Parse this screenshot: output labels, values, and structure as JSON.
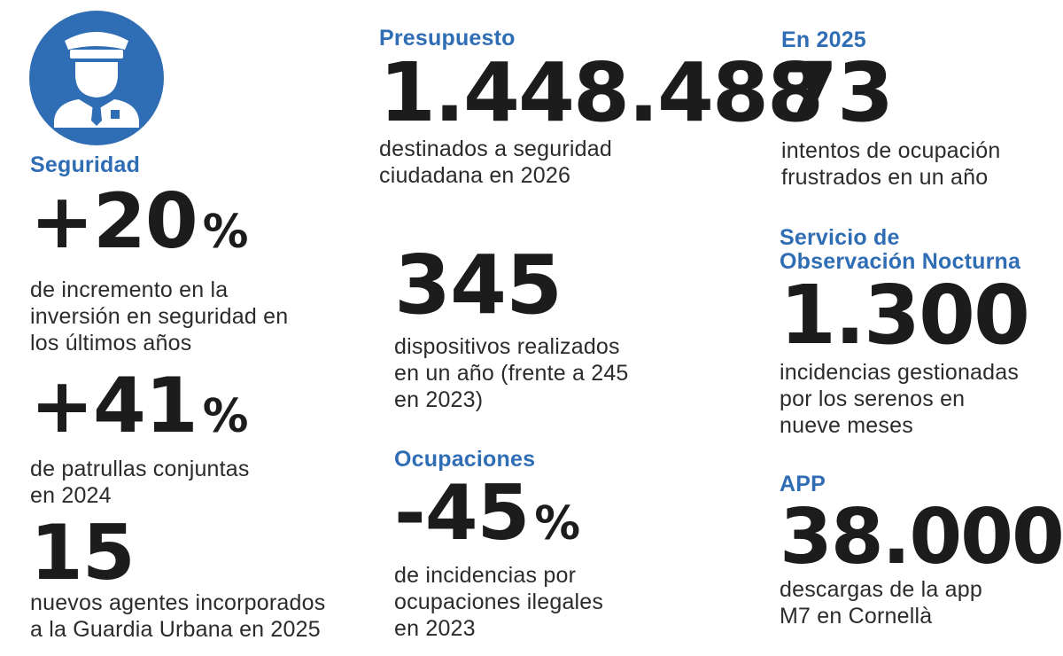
{
  "colors": {
    "accent": "#2f6db4",
    "text": "#1c1c1c",
    "background": "#ffffff"
  },
  "icon": {
    "name": "police-officer-icon"
  },
  "seguridad": {
    "label": "Seguridad",
    "value": "+20",
    "suffix": "%",
    "desc": [
      "de incremento en la",
      "inversión en seguridad en",
      "los últimos años"
    ]
  },
  "patrullas": {
    "value": "+41",
    "suffix": "%",
    "desc": [
      "de patrullas conjuntas",
      "en 2024"
    ]
  },
  "agentes": {
    "value": "15",
    "desc": [
      "nuevos agentes incorporados",
      "a la Guardia Urbana en 2025"
    ]
  },
  "presupuesto": {
    "label": "Presupuesto",
    "value": "1.448.488",
    "desc": [
      "destinados a seguridad",
      "ciudadana en 2026"
    ]
  },
  "dispositivos": {
    "value": "345",
    "desc": [
      "dispositivos realizados",
      "en un año (frente a 245",
      "en 2023)"
    ]
  },
  "ocupaciones": {
    "label": "Ocupaciones",
    "value": "-45",
    "suffix": "%",
    "desc": [
      "de incidencias por",
      "ocupaciones ilegales",
      "en 2023"
    ]
  },
  "en2025": {
    "label": "En 2025",
    "value": "73",
    "desc": [
      "intentos de ocupación",
      "frustrados en un año"
    ]
  },
  "nocturna": {
    "label": [
      "Servicio de",
      "Observación Nocturna"
    ],
    "value": "1.300",
    "desc": [
      "incidencias gestionadas",
      "por los serenos en",
      "nueve meses"
    ]
  },
  "app": {
    "label": "APP",
    "value": "38.000",
    "desc": [
      "descargas de la app",
      "M7 en Cornellà"
    ]
  }
}
